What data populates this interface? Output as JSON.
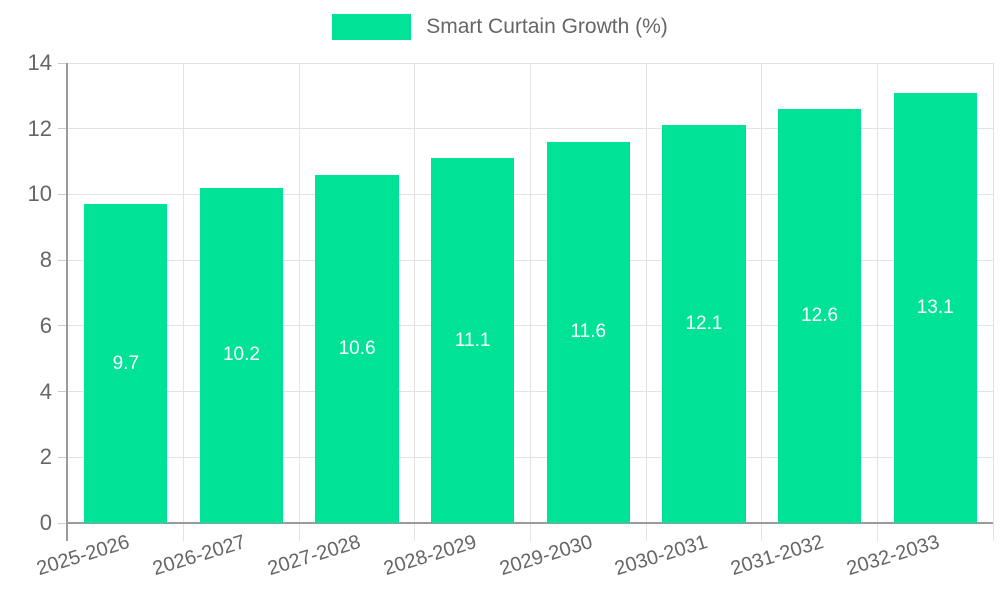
{
  "chart": {
    "legend": {
      "label": "Smart Curtain Growth (%)"
    }
  },
  "colors": {
    "bar": "#00E396",
    "bar_label": "#FFFFFF",
    "axis_text": "#666666",
    "grid_line": "#E3E3E3",
    "axis_line": "#9A9A9A",
    "tick": "#CCCCCC",
    "background": "#FFFFFF"
  },
  "chart_data": {
    "type": "bar",
    "title": "",
    "categories": [
      "2025-2026",
      "2026-2027",
      "2027-2028",
      "2028-2029",
      "2029-2030",
      "2030-2031",
      "2031-2032",
      "2032-2033"
    ],
    "series": [
      {
        "name": "Smart Curtain Growth (%)",
        "values": [
          9.7,
          10.2,
          10.6,
          11.1,
          11.6,
          12.1,
          12.6,
          13.1
        ]
      }
    ],
    "xlabel": "",
    "ylabel": "",
    "ylim": [
      0,
      14
    ],
    "yticks": [
      0,
      2,
      4,
      6,
      8,
      10,
      12,
      14
    ],
    "grid": true,
    "legend_position": "top",
    "data_labels": "inside-center",
    "bar_band_fraction": 0.72,
    "x_tick_rotation_deg": -17
  }
}
